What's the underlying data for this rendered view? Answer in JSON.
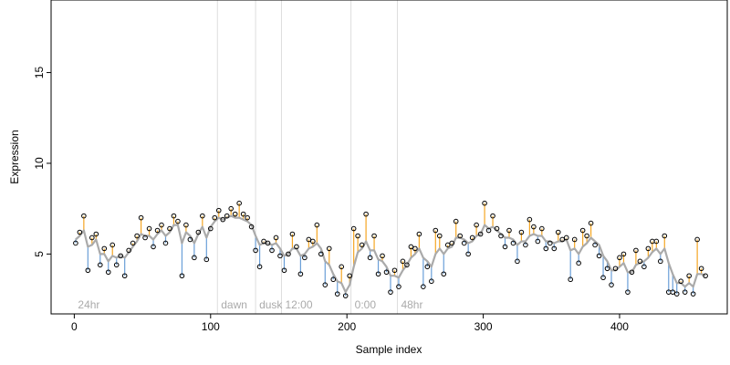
{
  "chart_data": {
    "type": "scatter",
    "title": "",
    "xlabel": "Sample index",
    "ylabel": "Expression",
    "xlim": [
      -17,
      479
    ],
    "ylim": [
      1.7,
      19.0
    ],
    "x_ticks": [
      0,
      100,
      200,
      300,
      400
    ],
    "y_ticks": [
      5,
      10,
      15
    ],
    "grid": false,
    "legend": "none",
    "colors": {
      "smooth": "#aaaaaa",
      "above": "#f5a623",
      "below": "#6a9fd8",
      "point": "#000000",
      "separator": "#dddddd",
      "region_label": "#aaaaaa"
    },
    "regions": [
      {
        "label": "24hr",
        "x": 0
      },
      {
        "label": "dawn",
        "x": 105
      },
      {
        "label": "dusk",
        "x": 133
      },
      {
        "label": "12:00",
        "x": 152
      },
      {
        "label": "0:00",
        "x": 203
      },
      {
        "label": "48hr",
        "x": 237
      }
    ],
    "series": [
      {
        "x": [
          1,
          4,
          7,
          10,
          13,
          16,
          19,
          22,
          25,
          28,
          31,
          34,
          37,
          40,
          43,
          46,
          49,
          52,
          55,
          58,
          61,
          64,
          67,
          70,
          73,
          76,
          79,
          82,
          85,
          88,
          91,
          94,
          97,
          100,
          103,
          106,
          109,
          112,
          115,
          118,
          121,
          124,
          127,
          130,
          133,
          136,
          139,
          142,
          145,
          148,
          151,
          154,
          157,
          160,
          163,
          166,
          169,
          172,
          175,
          178,
          181,
          184,
          187,
          190,
          193,
          196,
          199,
          202,
          205,
          208,
          211,
          214,
          217,
          220,
          223,
          226,
          229,
          232,
          235,
          238,
          241,
          244,
          247,
          250,
          253,
          256,
          259,
          262,
          265,
          268,
          271,
          274,
          277,
          280,
          283,
          286,
          289,
          292,
          295,
          298,
          301,
          304,
          307,
          310,
          313,
          316,
          319,
          322,
          325,
          328,
          331,
          334,
          337,
          340,
          343,
          346,
          349,
          352,
          355,
          358,
          361,
          364,
          367,
          370,
          373,
          376,
          379,
          382,
          385,
          388,
          391,
          394,
          397,
          400,
          403,
          406,
          409,
          412,
          415,
          418,
          421,
          424,
          427,
          430,
          433,
          436,
          439,
          442,
          445,
          448,
          451,
          454,
          457,
          460,
          463
        ],
        "y": [
          5.6,
          6.2,
          7.1,
          4.1,
          5.9,
          6.1,
          4.4,
          5.3,
          4.0,
          5.5,
          4.4,
          4.9,
          3.8,
          5.2,
          5.6,
          6.0,
          7.0,
          5.9,
          6.4,
          5.4,
          6.3,
          6.6,
          5.6,
          6.4,
          7.1,
          6.8,
          3.8,
          6.6,
          5.8,
          4.8,
          6.2,
          7.1,
          4.7,
          6.4,
          7.0,
          7.4,
          6.9,
          7.1,
          7.5,
          7.2,
          7.8,
          7.2,
          7.0,
          6.5,
          5.2,
          4.3,
          5.7,
          5.6,
          5.2,
          5.9,
          4.9,
          4.1,
          5.0,
          6.1,
          5.4,
          3.9,
          4.8,
          5.8,
          5.7,
          6.6,
          5.0,
          3.3,
          5.3,
          3.6,
          2.8,
          4.3,
          2.7,
          3.8,
          6.4,
          6.0,
          5.5,
          7.2,
          4.8,
          6.0,
          3.9,
          4.9,
          4.0,
          2.9,
          4.1,
          3.2,
          4.6,
          4.4,
          5.4,
          5.3,
          6.1,
          3.2,
          4.3,
          3.5,
          6.3,
          6.0,
          3.9,
          5.5,
          5.6,
          6.8,
          6.0,
          5.6,
          5.0,
          5.9,
          6.6,
          6.1,
          7.8,
          6.3,
          7.1,
          6.4,
          6.0,
          5.4,
          6.3,
          5.6,
          4.6,
          6.2,
          5.5,
          6.9,
          6.5,
          5.7,
          6.4,
          5.3,
          5.6,
          5.3,
          6.2,
          5.8,
          5.9,
          3.6,
          5.8,
          4.5,
          6.3,
          6.0,
          6.7,
          5.5,
          4.9,
          3.7,
          4.2,
          3.3,
          4.2,
          4.8,
          5.0,
          2.9,
          4.0,
          5.2,
          4.6,
          4.3,
          5.3,
          5.7,
          5.7,
          4.6,
          6.0,
          2.9,
          2.9,
          2.8,
          3.5,
          2.9,
          3.8,
          2.8,
          5.8,
          4.2,
          3.8
        ],
        "smooth": [
          5.8,
          6.0,
          6.3,
          5.4,
          5.5,
          5.8,
          5.0,
          5.0,
          4.6,
          4.9,
          4.8,
          4.9,
          4.8,
          5.1,
          5.4,
          5.7,
          6.1,
          6.0,
          6.0,
          5.8,
          6.1,
          6.3,
          6.0,
          6.2,
          6.6,
          6.6,
          5.6,
          6.2,
          6.0,
          5.6,
          6.1,
          6.5,
          5.9,
          6.5,
          6.8,
          7.0,
          6.9,
          7.0,
          7.1,
          7.0,
          7.0,
          6.9,
          6.8,
          6.6,
          6.0,
          5.5,
          5.6,
          5.6,
          5.5,
          5.6,
          5.3,
          4.9,
          5.0,
          5.3,
          5.3,
          4.9,
          5.0,
          5.3,
          5.4,
          5.6,
          5.3,
          4.6,
          4.4,
          3.9,
          3.5,
          3.4,
          2.9,
          3.3,
          4.3,
          5.1,
          5.3,
          5.7,
          5.2,
          5.2,
          4.7,
          4.6,
          4.3,
          3.8,
          3.8,
          3.7,
          4.1,
          4.4,
          4.8,
          5.0,
          5.3,
          4.8,
          4.6,
          4.3,
          5.0,
          5.3,
          5.0,
          5.3,
          5.4,
          5.9,
          5.9,
          5.8,
          5.6,
          5.7,
          6.0,
          6.1,
          6.6,
          6.4,
          6.5,
          6.3,
          6.1,
          5.9,
          5.9,
          5.8,
          5.5,
          5.7,
          5.7,
          6.0,
          6.1,
          6.0,
          6.0,
          5.7,
          5.7,
          5.6,
          5.7,
          5.7,
          5.8,
          5.2,
          5.3,
          5.0,
          5.4,
          5.6,
          5.9,
          5.7,
          5.5,
          4.9,
          4.6,
          4.1,
          4.1,
          4.3,
          4.5,
          4.0,
          4.0,
          4.4,
          4.5,
          4.6,
          4.8,
          5.1,
          5.3,
          5.0,
          5.3,
          4.5,
          3.9,
          3.4,
          3.4,
          3.2,
          3.4,
          3.2,
          3.9,
          3.9,
          3.8
        ]
      }
    ]
  }
}
